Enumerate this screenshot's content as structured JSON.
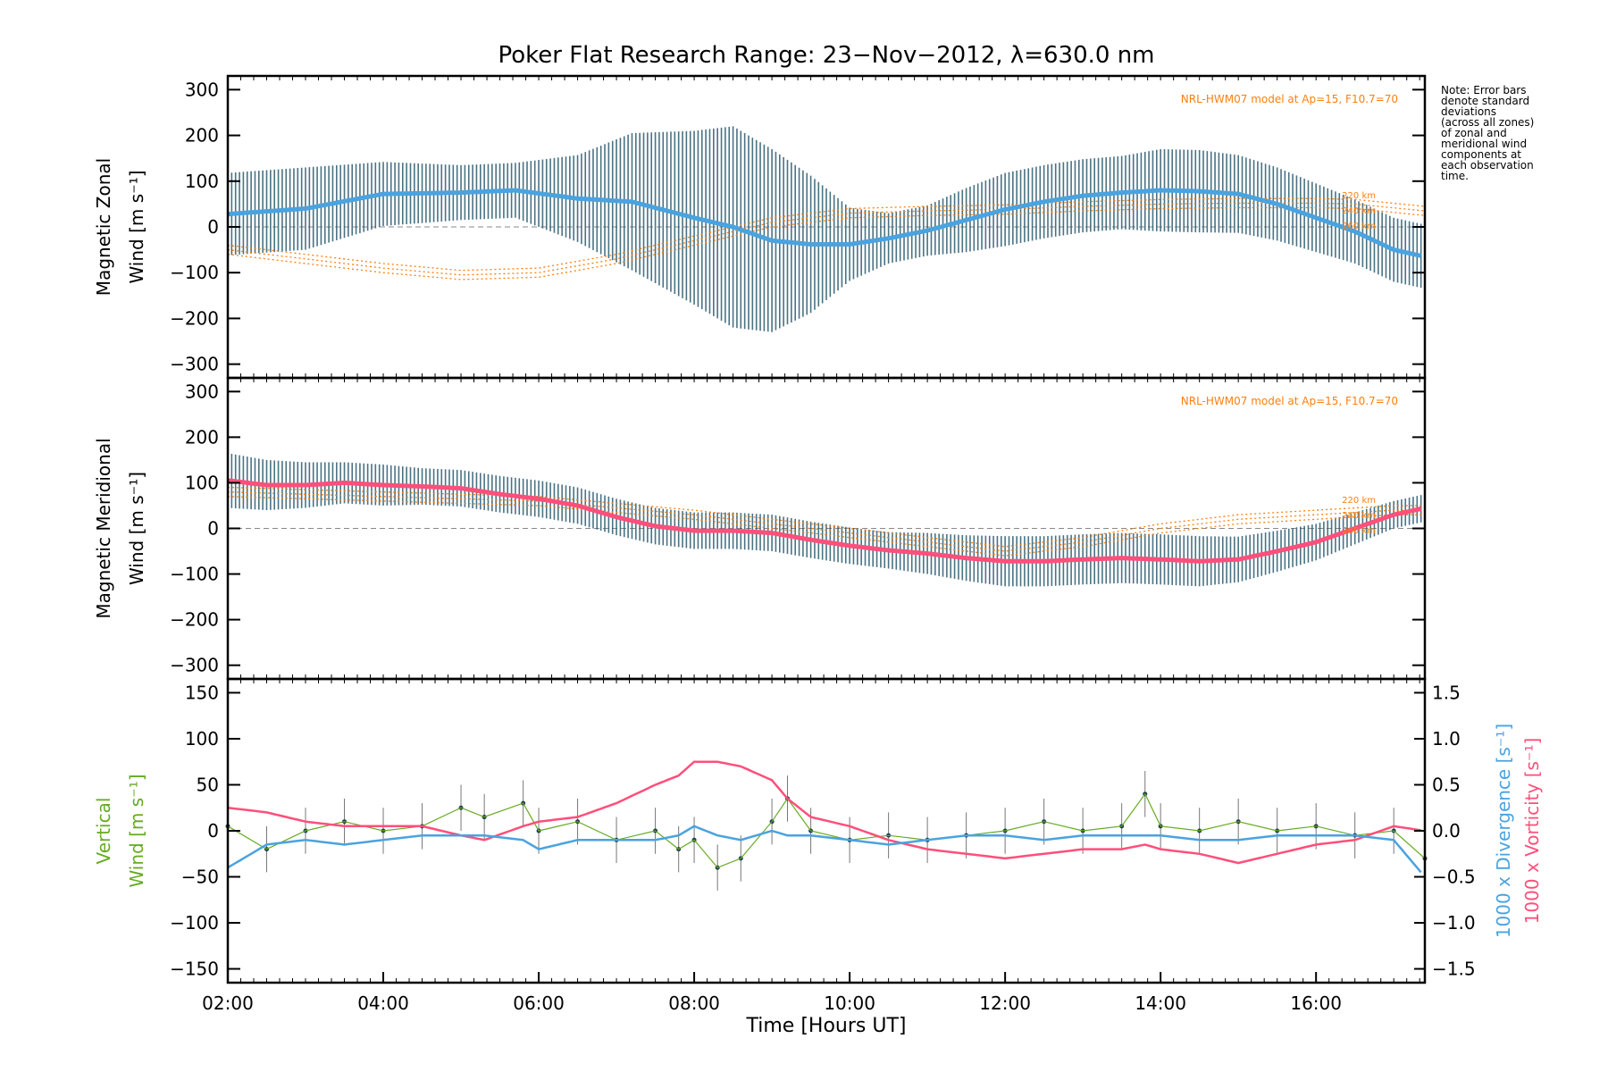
{
  "title": "Poker Flat Research Range: 23−Nov−2012, λ=630.0 nm",
  "note": "Note: Error bars\ndenote standard\ndeviations\n(across all zones)\nof zonal and\nmeridional wind\ncomponents at\neach observation\ntime.",
  "colors": {
    "zonal_mean": "#4aa3df",
    "zonal_mean_early": "#2255dd",
    "meridional_mean": "#ff4f7b",
    "vertical": "#66aa22",
    "divergence": "#4aa3df",
    "vorticity": "#ff4f7b",
    "model": "#ff7f0e",
    "errorbar": "#2b5a6e"
  },
  "chart_data": [
    {
      "type": "line",
      "panel": "zonal",
      "ylabel_line1": "Magnetic Zonal",
      "ylabel_line2": "Wind [m s⁻¹]",
      "ylim": [
        -330,
        330
      ],
      "yticks": [
        "300",
        "200",
        "100",
        "0",
        "−100",
        "−200",
        "−300"
      ],
      "model_label": "NRL-HWM07 model at Ap=15, F10.7=70",
      "altitude_labels": [
        "220 km",
        "240 km",
        "260 km"
      ],
      "x_hours": [
        2.0,
        3.0,
        4.0,
        5.0,
        5.7,
        6.5,
        7.2,
        8.0,
        8.5,
        9.0,
        9.5,
        10.0,
        10.5,
        11.0,
        11.5,
        12.0,
        12.5,
        13.0,
        13.5,
        14.0,
        14.5,
        15.0,
        15.5,
        16.0,
        16.5,
        17.0,
        17.4
      ],
      "mean": [
        28,
        40,
        72,
        75,
        80,
        62,
        55,
        20,
        0,
        -30,
        -38,
        -38,
        -25,
        -8,
        15,
        38,
        55,
        68,
        75,
        80,
        78,
        72,
        50,
        20,
        -10,
        -50,
        -65
      ],
      "error_sd": [
        90,
        90,
        70,
        60,
        60,
        95,
        150,
        190,
        220,
        200,
        150,
        80,
        55,
        55,
        70,
        80,
        80,
        80,
        80,
        90,
        90,
        85,
        80,
        75,
        70,
        70,
        70
      ],
      "model_x": [
        2.0,
        3.0,
        4.0,
        5.0,
        6.0,
        7.0,
        8.0,
        9.0,
        10.0,
        11.0,
        12.0,
        13.0,
        14.0,
        15.0,
        16.0,
        16.5,
        17.4
      ],
      "model_y": [
        -40,
        -60,
        -80,
        -95,
        -90,
        -60,
        -20,
        20,
        40,
        45,
        48,
        55,
        60,
        62,
        62,
        60,
        45
      ]
    },
    {
      "type": "line",
      "panel": "meridional",
      "ylabel_line1": "Magnetic Meridional",
      "ylabel_line2": "Wind [m s⁻¹]",
      "ylim": [
        -330,
        330
      ],
      "yticks": [
        "300",
        "200",
        "100",
        "0",
        "−100",
        "−200",
        "−300"
      ],
      "model_label": "NRL-HWM07 model at Ap=15, F10.7=70",
      "altitude_labels": [
        "220 km",
        "240 km",
        "260 km"
      ],
      "x_hours": [
        2.0,
        2.5,
        3.0,
        3.5,
        4.0,
        4.5,
        5.0,
        5.5,
        6.0,
        6.5,
        7.0,
        7.5,
        8.0,
        8.5,
        9.0,
        9.5,
        10.0,
        10.5,
        11.0,
        11.5,
        12.0,
        12.5,
        13.0,
        13.5,
        14.0,
        14.5,
        15.0,
        15.5,
        16.0,
        16.5,
        17.0,
        17.4
      ],
      "mean": [
        105,
        95,
        95,
        100,
        95,
        92,
        88,
        75,
        65,
        50,
        25,
        5,
        -5,
        -5,
        -10,
        -25,
        -38,
        -48,
        -55,
        -65,
        -72,
        -72,
        -68,
        -65,
        -68,
        -72,
        -68,
        -50,
        -30,
        0,
        30,
        45
      ],
      "error_sd": [
        60,
        55,
        50,
        45,
        45,
        40,
        40,
        40,
        40,
        40,
        40,
        40,
        40,
        40,
        40,
        40,
        40,
        40,
        45,
        50,
        55,
        55,
        55,
        55,
        55,
        55,
        50,
        45,
        40,
        35,
        30,
        30
      ],
      "model_x": [
        2.0,
        4.0,
        6.0,
        8.0,
        10.0,
        12.0,
        13.0,
        14.0,
        15.0,
        16.0,
        17.0,
        17.4
      ],
      "model_y": [
        90,
        80,
        70,
        40,
        0,
        -40,
        -20,
        10,
        30,
        40,
        50,
        50
      ]
    },
    {
      "type": "line",
      "panel": "vertical",
      "ylabel_line1": "Vertical",
      "ylabel_line2": "Wind [m s⁻¹]",
      "ylim": [
        -165,
        165
      ],
      "yticks": [
        "150",
        "100",
        "50",
        "0",
        "−50",
        "−100",
        "−150"
      ],
      "y2lim": [
        -1.65,
        1.65
      ],
      "y2ticks": [
        "1.5",
        "1.0",
        "0.5",
        "0.0",
        "−0.5",
        "−1.0",
        "−1.5"
      ],
      "y2label_blue": "1000 x Divergence [s⁻¹]",
      "y2label_pink": "1000 x Vorticity [s⁻¹]",
      "xlabel": "Time [Hours UT]",
      "xticks": [
        "02:00",
        "04:00",
        "06:00",
        "08:00",
        "10:00",
        "12:00",
        "14:00",
        "16:00"
      ],
      "xlim": [
        2.0,
        17.4
      ],
      "vertical_x": [
        2.0,
        2.5,
        3.0,
        3.5,
        4.0,
        4.5,
        5.0,
        5.3,
        5.8,
        6.0,
        6.5,
        7.0,
        7.5,
        7.8,
        8.0,
        8.3,
        8.6,
        9.0,
        9.2,
        9.5,
        10.0,
        10.5,
        11.0,
        11.5,
        12.0,
        12.5,
        13.0,
        13.5,
        13.8,
        14.0,
        14.5,
        15.0,
        15.5,
        16.0,
        16.5,
        17.0,
        17.4
      ],
      "vertical_y": [
        5,
        -20,
        0,
        10,
        0,
        5,
        25,
        15,
        30,
        0,
        10,
        -10,
        0,
        -20,
        -10,
        -40,
        -30,
        10,
        35,
        0,
        -10,
        -5,
        -10,
        -5,
        0,
        10,
        0,
        5,
        40,
        5,
        0,
        10,
        0,
        5,
        -5,
        0,
        -30
      ],
      "divergence": [
        -0.4,
        -0.15,
        -0.1,
        -0.15,
        -0.1,
        -0.05,
        -0.05,
        -0.05,
        -0.1,
        -0.2,
        -0.1,
        -0.1,
        -0.1,
        -0.05,
        0.05,
        -0.05,
        -0.1,
        0.0,
        -0.05,
        -0.05,
        -0.1,
        -0.15,
        -0.1,
        -0.05,
        -0.05,
        -0.1,
        -0.05,
        -0.05,
        -0.05,
        -0.05,
        -0.1,
        -0.1,
        -0.05,
        -0.05,
        -0.05,
        -0.1,
        -0.5
      ],
      "vorticity": [
        0.25,
        0.2,
        0.1,
        0.05,
        0.05,
        0.05,
        -0.05,
        -0.1,
        0.05,
        0.1,
        0.15,
        0.3,
        0.5,
        0.6,
        0.75,
        0.75,
        0.7,
        0.55,
        0.35,
        0.15,
        0.05,
        -0.1,
        -0.2,
        -0.25,
        -0.3,
        -0.25,
        -0.2,
        -0.2,
        -0.15,
        -0.2,
        -0.25,
        -0.35,
        -0.25,
        -0.15,
        -0.1,
        0.05,
        0.0
      ]
    }
  ]
}
